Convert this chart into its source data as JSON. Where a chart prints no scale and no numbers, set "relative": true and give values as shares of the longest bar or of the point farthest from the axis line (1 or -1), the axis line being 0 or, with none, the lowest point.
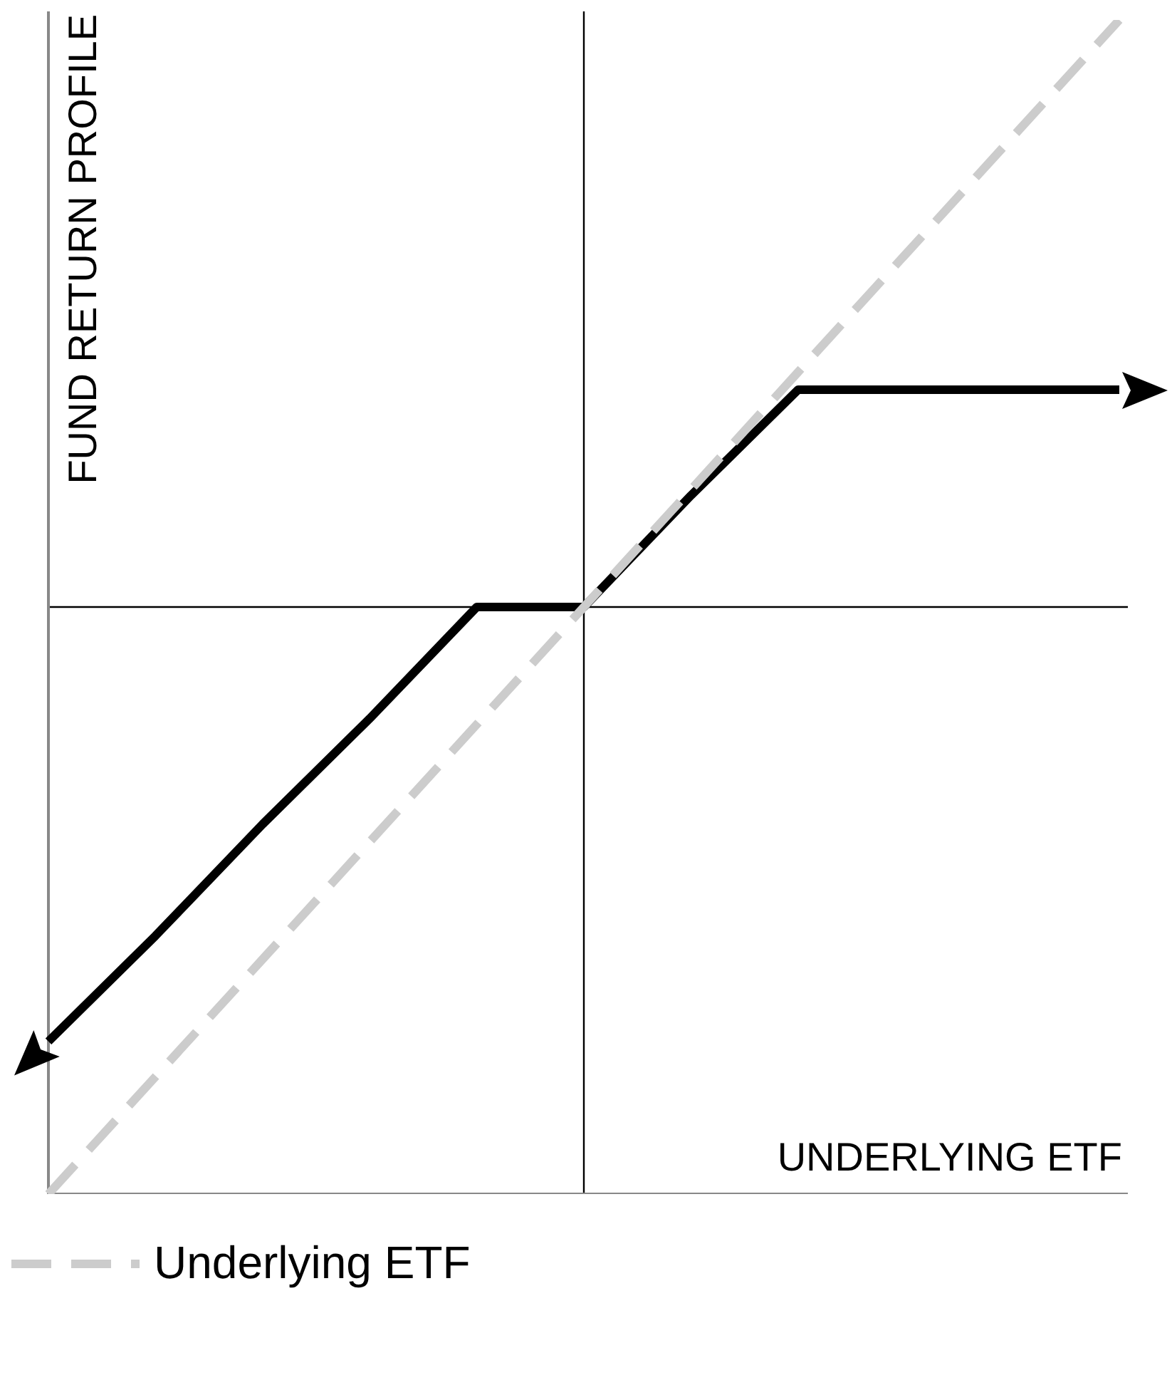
{
  "chart_data": {
    "type": "line",
    "relative": true,
    "xlabel": "UNDERLYING ETF",
    "ylabel": "FUND RETURN PROFILE",
    "legend": "bottom",
    "categories": [
      null,
      null,
      null,
      null,
      null,
      null,
      null,
      null,
      null,
      null,
      null
    ],
    "series": [
      {
        "name": "Underlying ETF",
        "color": "#cccccc",
        "line_style": "dashed",
        "values": [
          -1,
          -0.8,
          -0.6,
          -0.4,
          -0.2,
          0,
          0.2,
          0.4,
          0.6,
          0.8,
          1
        ]
      },
      {
        "color": "#000000",
        "line_style": "solid",
        "values": [
          -0.74,
          -0.56,
          -0.37,
          -0.19,
          0,
          0,
          0.19,
          0.37,
          0.37,
          0.37,
          0.37
        ]
      }
    ]
  }
}
